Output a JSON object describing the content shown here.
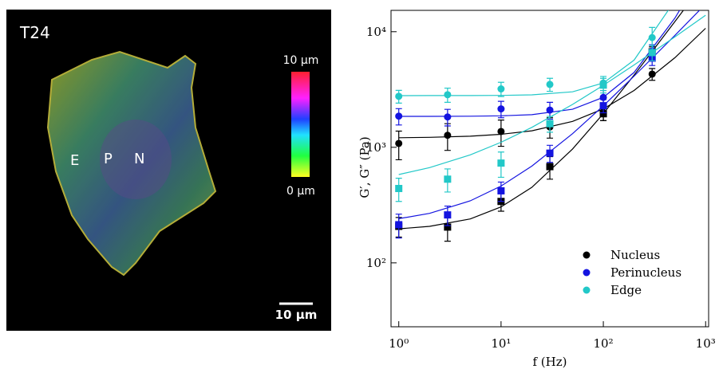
{
  "image": {
    "label": "T24",
    "colorbar_max": "10 µm",
    "colorbar_min": "0 µm",
    "regions": [
      "E",
      "P",
      "N"
    ],
    "scale_bar": "10 µm"
  },
  "chart_data": {
    "type": "scatter",
    "x_label": "f (Hz)",
    "y_label": "G′, G″ (Pa)",
    "log_x": true,
    "log_y": true,
    "legend": "lower right",
    "xlim": [
      0.84,
      1070
    ],
    "ylim": [
      28,
      15300
    ],
    "xticks": [
      {
        "value": 1,
        "label": "10⁰"
      },
      {
        "value": 10,
        "label": "10¹"
      },
      {
        "value": 100,
        "label": "10²"
      },
      {
        "value": 1000,
        "label": "10³"
      }
    ],
    "yticks": [
      {
        "value": 100,
        "label": "10²"
      },
      {
        "value": 1000,
        "label": "10³"
      },
      {
        "value": 10000,
        "label": "10⁴"
      }
    ],
    "x": [
      1,
      3,
      10,
      30,
      100,
      300
    ],
    "fit_x": [
      1,
      2,
      5,
      10,
      20,
      50,
      100,
      200,
      500,
      1000
    ],
    "series": [
      {
        "name": "Nucleus",
        "color": "#000000",
        "G_prime": {
          "values": [
            1080,
            1270,
            1370,
            1500,
            2000,
            4300
          ],
          "errors": [
            300,
            330,
            350,
            300,
            300,
            500
          ],
          "fit": [
            1210,
            1219,
            1248,
            1295,
            1390,
            1675,
            2150,
            3100,
            5950,
            10700
          ]
        },
        "G_double_prime": {
          "values": [
            207,
            204,
            340,
            680,
            1950,
            6700
          ],
          "errors": [
            40,
            50,
            60,
            150,
            250,
            700
          ],
          "fit": [
            197,
            207,
            240,
            305,
            451,
            967,
            1959,
            4216,
            12200,
            27570
          ]
        }
      },
      {
        "name": "Perinucleus",
        "color": "#1414e0",
        "G_prime": {
          "values": [
            1860,
            1830,
            2150,
            2100,
            2700,
            6800
          ],
          "errors": [
            300,
            300,
            350,
            350,
            400,
            900
          ],
          "fit": [
            1851,
            1852,
            1857,
            1872,
            1915,
            2133,
            2706,
            4442,
            13082,
            35924
          ]
        },
        "G_double_prime": {
          "values": [
            214,
            260,
            420,
            890,
            2290,
            5900
          ],
          "errors": [
            50,
            50,
            80,
            150,
            300,
            800
          ],
          "fit": [
            241,
            268,
            344,
            462,
            687,
            1312,
            2288,
            4127,
            9268,
            17346
          ]
        }
      },
      {
        "name": "Edge",
        "color": "#22c8c8",
        "G_prime": {
          "values": [
            2760,
            2850,
            3200,
            3500,
            3600,
            8900
          ],
          "errors": [
            350,
            400,
            450,
            450,
            500,
            2000
          ],
          "fit": [
            2800,
            2801,
            2803,
            2811,
            2841,
            3022,
            3602,
            5680,
            18500,
            59600
          ]
        },
        "G_double_prime": {
          "values": [
            440,
            530,
            730,
            1600,
            3450,
            6600
          ],
          "errors": [
            100,
            120,
            180,
            250,
            500,
            1000
          ],
          "fit": [
            581,
            667,
            860,
            1105,
            1487,
            2348,
            3442,
            5156,
            9007,
            13884
          ]
        }
      }
    ]
  }
}
